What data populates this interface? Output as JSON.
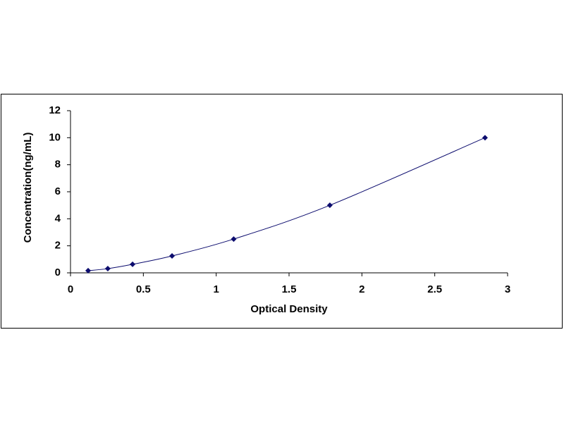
{
  "chart_data": {
    "type": "scatter",
    "xlabel": "Optical Density",
    "ylabel": "Concentration(ng/mL)",
    "series": [
      {
        "color": "#0c0c6e",
        "marker": "diamond",
        "line": "smooth",
        "x": [
          0.121,
          0.256,
          0.426,
          0.697,
          1.12,
          1.78,
          2.845
        ],
        "y": [
          0.16,
          0.31,
          0.63,
          1.25,
          2.5,
          5,
          10
        ]
      }
    ],
    "xlim": [
      0,
      3
    ],
    "ylim": [
      0,
      12
    ],
    "xticks": [
      0,
      0.5,
      1,
      1.5,
      2,
      2.5,
      3
    ],
    "yticks": [
      0,
      2,
      4,
      6,
      8,
      10,
      12
    ],
    "grid": false
  }
}
